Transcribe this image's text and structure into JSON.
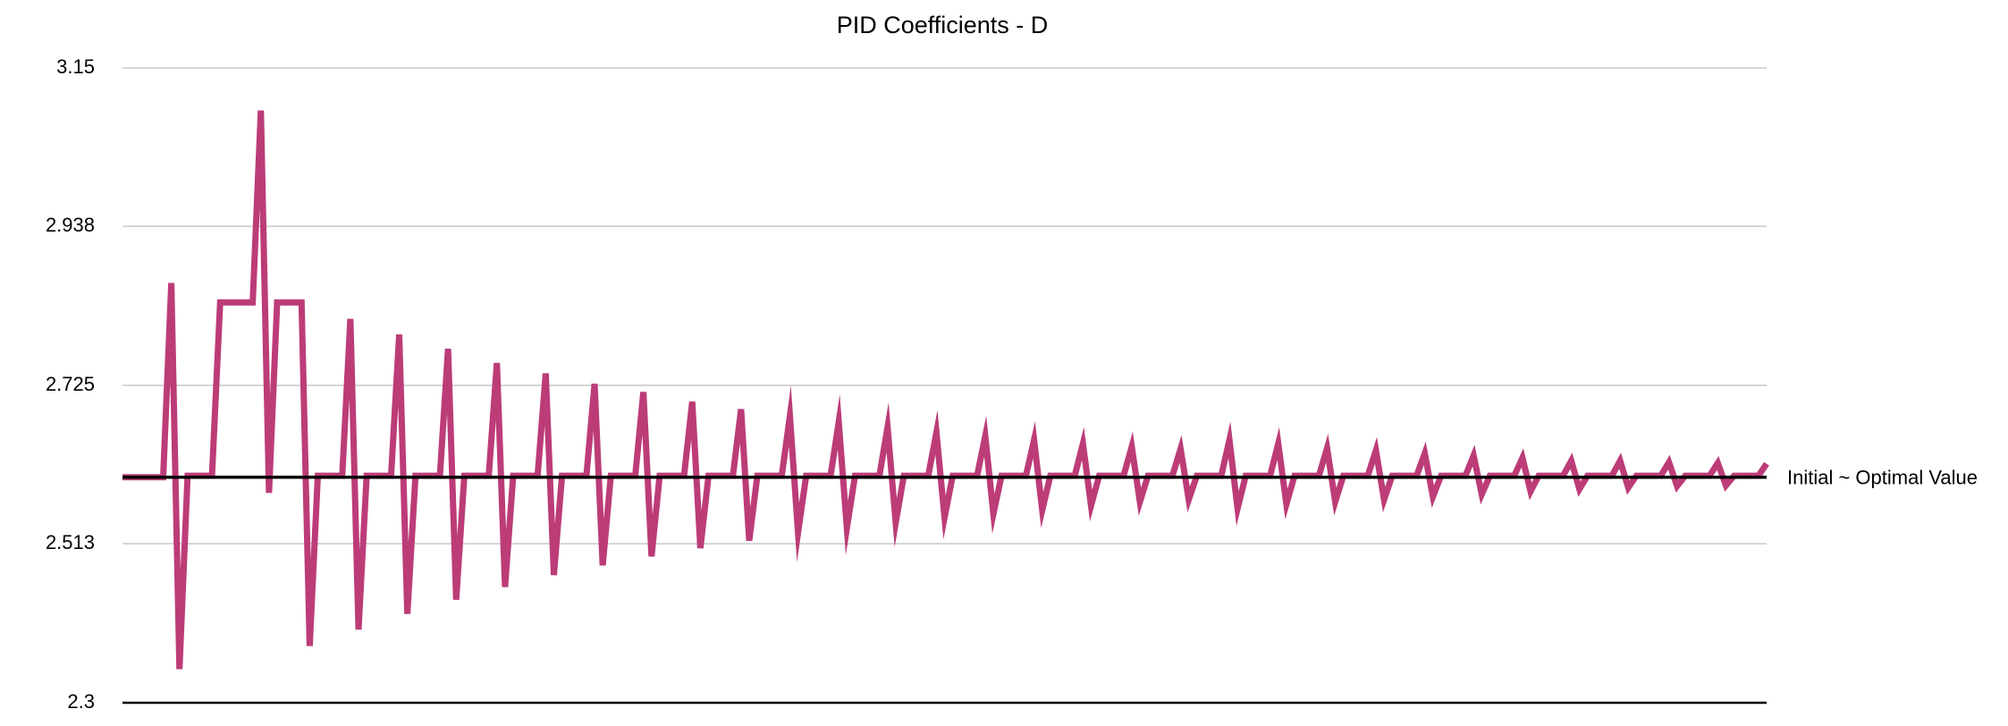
{
  "chart_data": {
    "type": "line",
    "title": "PID Coefficients - D",
    "color": "#bc3c78",
    "ylim": [
      2.3,
      3.15
    ],
    "yticks": [
      3.15,
      2.938,
      2.725,
      2.513,
      2.3
    ],
    "grid": true,
    "reference_line": {
      "value": 2.602,
      "label": "Initial ~ Optimal Value",
      "color": "#000000"
    },
    "values": [
      2.602,
      2.602,
      2.602,
      2.602,
      2.602,
      2.602,
      2.862,
      2.345,
      2.604,
      2.604,
      2.604,
      2.604,
      2.836,
      2.836,
      2.836,
      2.836,
      2.836,
      3.093,
      2.581,
      2.836,
      2.836,
      2.836,
      2.836,
      2.376,
      2.604,
      2.604,
      2.604,
      2.604,
      2.814,
      2.398,
      2.604,
      2.604,
      2.604,
      2.604,
      2.793,
      2.419,
      2.604,
      2.604,
      2.604,
      2.604,
      2.774,
      2.438,
      2.604,
      2.604,
      2.604,
      2.604,
      2.755,
      2.455,
      2.604,
      2.604,
      2.604,
      2.604,
      2.741,
      2.471,
      2.604,
      2.604,
      2.604,
      2.604,
      2.727,
      2.484,
      2.604,
      2.604,
      2.604,
      2.604,
      2.716,
      2.496,
      2.604,
      2.604,
      2.604,
      2.604,
      2.703,
      2.507,
      2.604,
      2.604,
      2.604,
      2.604,
      2.693,
      2.517,
      2.604,
      2.604,
      2.604,
      2.604,
      2.684,
      2.528,
      2.604,
      2.604,
      2.604,
      2.604,
      2.676,
      2.534,
      2.604,
      2.604,
      2.604,
      2.604,
      2.669,
      2.541,
      2.604,
      2.604,
      2.604,
      2.604,
      2.662,
      2.548,
      2.604,
      2.604,
      2.604,
      2.604,
      2.657,
      2.553,
      2.604,
      2.604,
      2.604,
      2.604,
      2.652,
      2.558,
      2.604,
      2.604,
      2.604,
      2.604,
      2.647,
      2.564,
      2.604,
      2.604,
      2.604,
      2.604,
      2.643,
      2.569,
      2.604,
      2.604,
      2.604,
      2.604,
      2.64,
      2.572,
      2.604,
      2.604,
      2.604,
      2.604,
      2.652,
      2.56,
      2.604,
      2.604,
      2.604,
      2.604,
      2.647,
      2.566,
      2.604,
      2.604,
      2.604,
      2.604,
      2.641,
      2.569,
      2.604,
      2.604,
      2.604,
      2.604,
      2.638,
      2.572,
      2.604,
      2.604,
      2.604,
      2.604,
      2.634,
      2.576,
      2.604,
      2.604,
      2.604,
      2.604,
      2.631,
      2.579,
      2.604,
      2.604,
      2.604,
      2.604,
      2.628,
      2.583,
      2.604,
      2.604,
      2.604,
      2.604,
      2.624,
      2.586,
      2.604,
      2.604,
      2.604,
      2.604,
      2.624,
      2.588,
      2.604,
      2.604,
      2.604,
      2.604,
      2.622,
      2.59,
      2.604,
      2.604,
      2.604,
      2.604,
      2.621,
      2.591,
      2.604,
      2.604,
      2.604,
      2.604,
      2.62
    ]
  }
}
